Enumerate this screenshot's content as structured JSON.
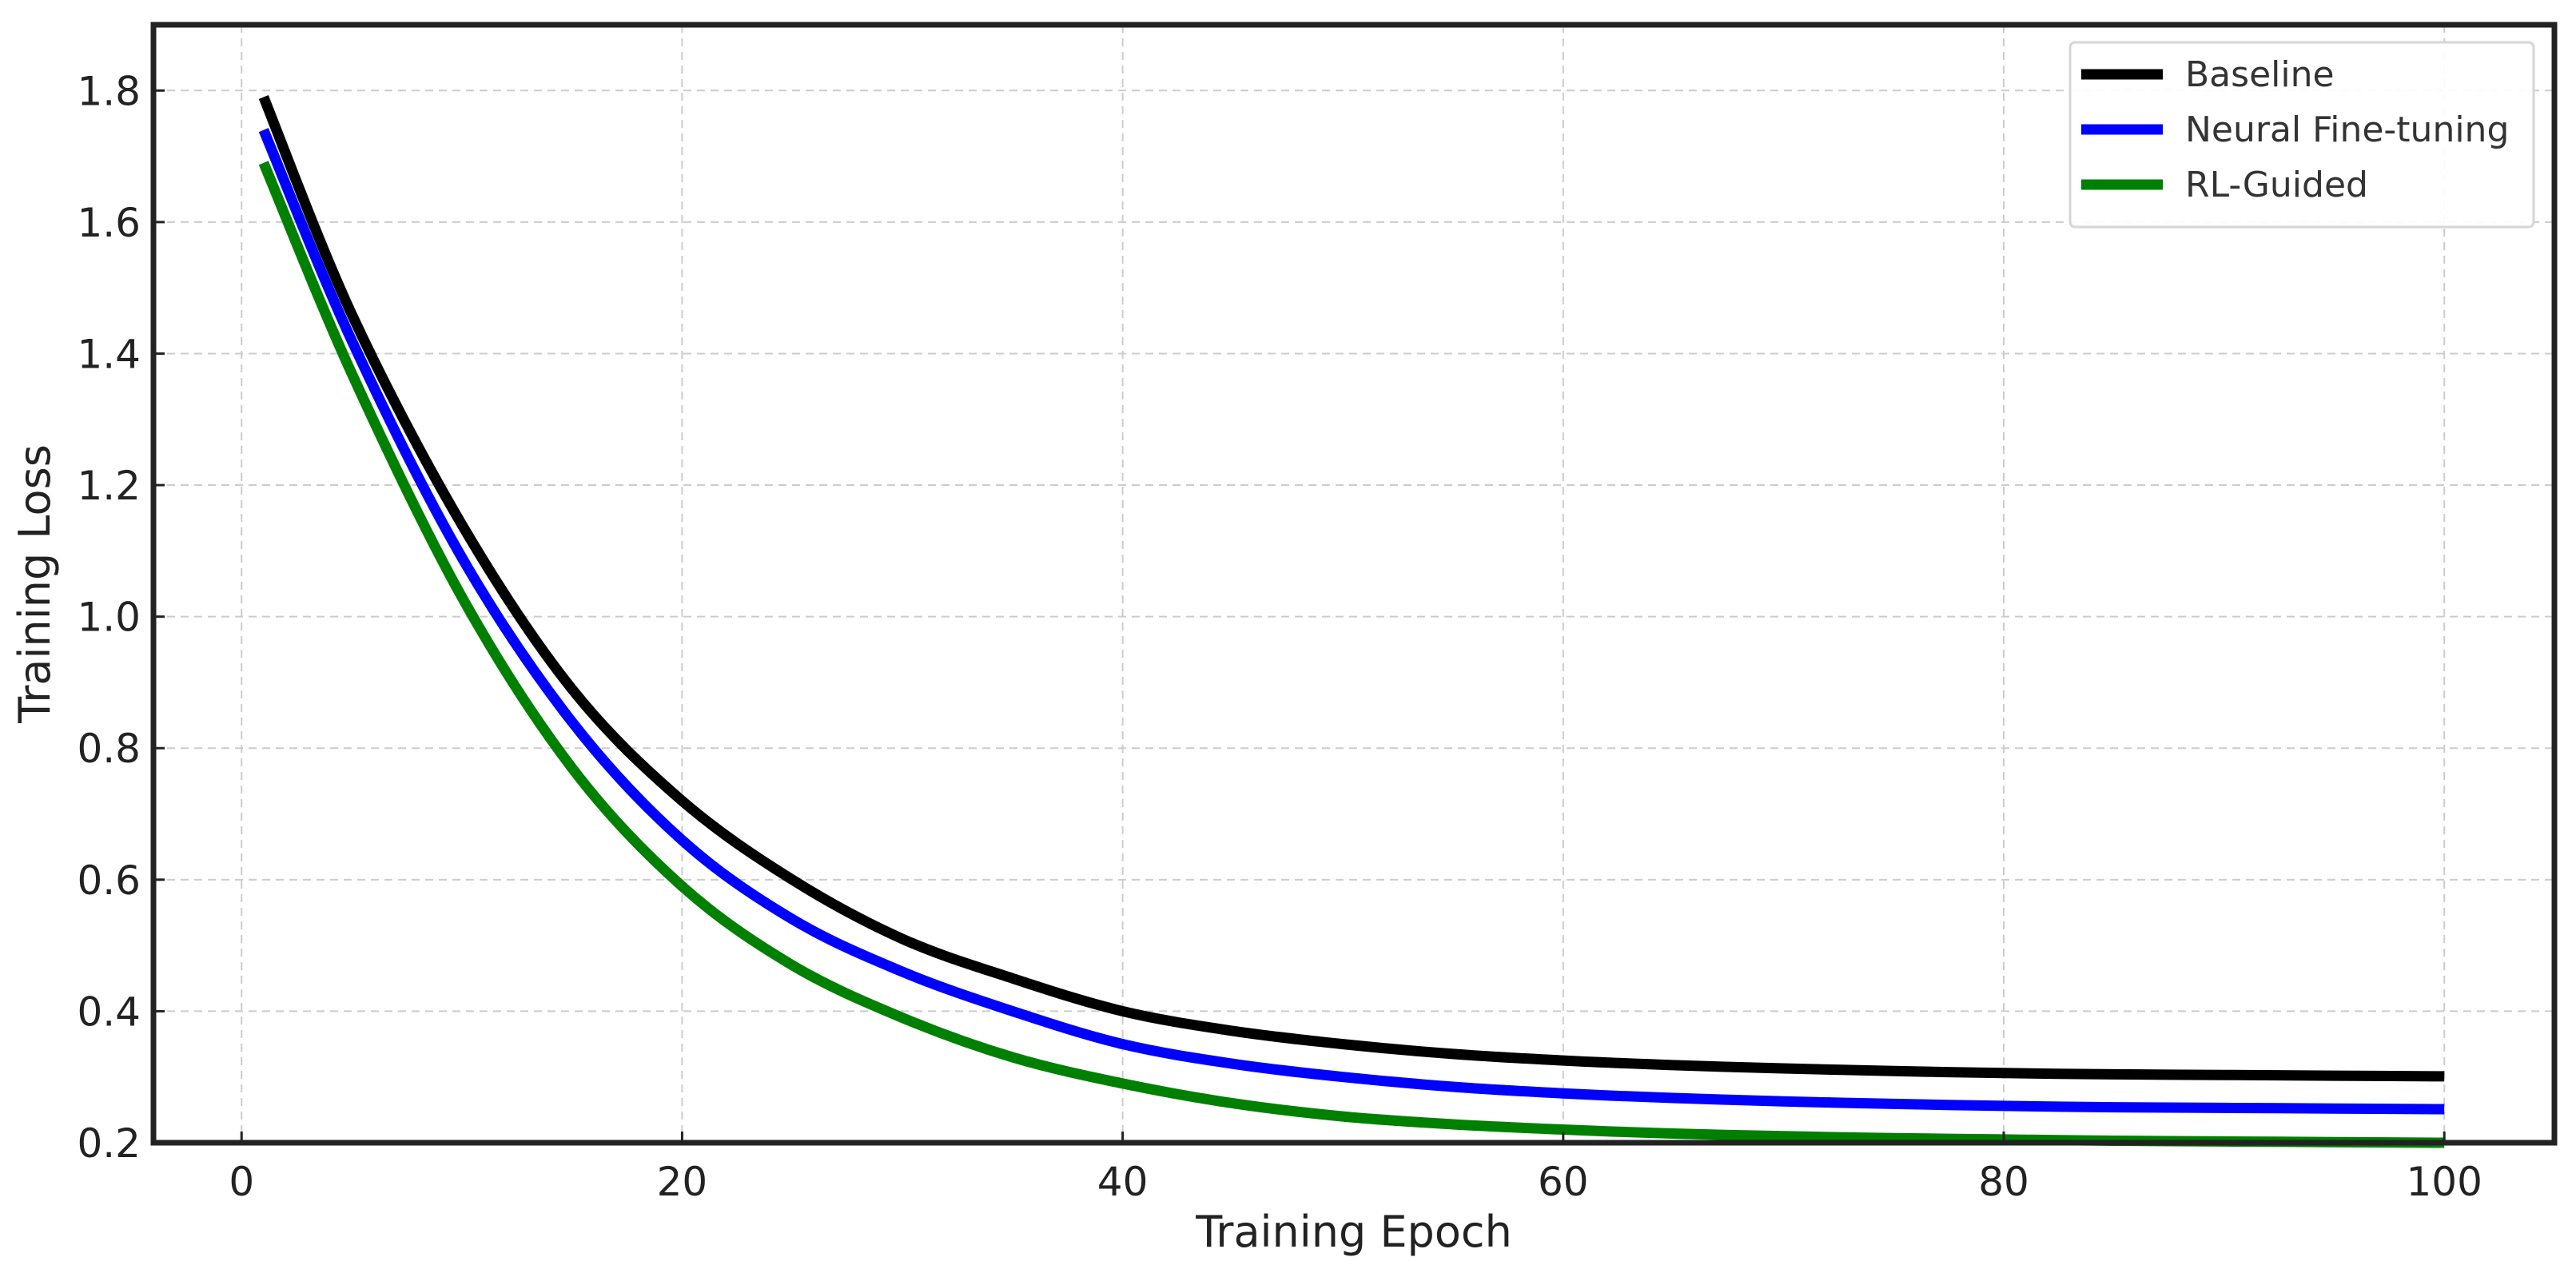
{
  "chart_data": {
    "type": "line",
    "title": "",
    "xlabel": "Training Epoch",
    "ylabel": "Training Loss",
    "xlim": [
      -4,
      105
    ],
    "ylim": [
      0.2,
      1.9
    ],
    "xticks": [
      0,
      20,
      40,
      60,
      80,
      100
    ],
    "xtick_labels": [
      "0",
      "20",
      "40",
      "60",
      "80",
      "100"
    ],
    "yticks": [
      0.2,
      0.4,
      0.6,
      0.8,
      1.0,
      1.2,
      1.4,
      1.6,
      1.8
    ],
    "ytick_labels": [
      "0.2",
      "0.4",
      "0.6",
      "0.8",
      "1.0",
      "1.2",
      "1.4",
      "1.6",
      "1.8"
    ],
    "grid": true,
    "legend_position": "top-right",
    "x": [
      1,
      5,
      10,
      15,
      20,
      25,
      30,
      35,
      40,
      45,
      50,
      55,
      60,
      65,
      70,
      75,
      80,
      85,
      90,
      95,
      100
    ],
    "series": [
      {
        "name": "Baseline",
        "color": "#000000",
        "values": [
          1.79,
          1.46,
          1.14,
          0.89,
          0.72,
          0.6,
          0.51,
          0.45,
          0.4,
          0.37,
          0.35,
          0.335,
          0.325,
          0.318,
          0.313,
          0.309,
          0.306,
          0.304,
          0.303,
          0.302,
          0.301
        ]
      },
      {
        "name": "Neural Fine-tuning",
        "color": "#0000ff",
        "values": [
          1.74,
          1.42,
          1.09,
          0.84,
          0.66,
          0.54,
          0.46,
          0.4,
          0.35,
          0.32,
          0.3,
          0.285,
          0.275,
          0.268,
          0.263,
          0.259,
          0.256,
          0.254,
          0.253,
          0.252,
          0.251
        ]
      },
      {
        "name": "RL-Guided",
        "color": "#008000",
        "values": [
          1.69,
          1.37,
          1.03,
          0.77,
          0.59,
          0.47,
          0.39,
          0.33,
          0.29,
          0.26,
          0.24,
          0.228,
          0.22,
          0.214,
          0.21,
          0.207,
          0.205,
          0.203,
          0.202,
          0.201,
          0.2
        ]
      }
    ]
  }
}
